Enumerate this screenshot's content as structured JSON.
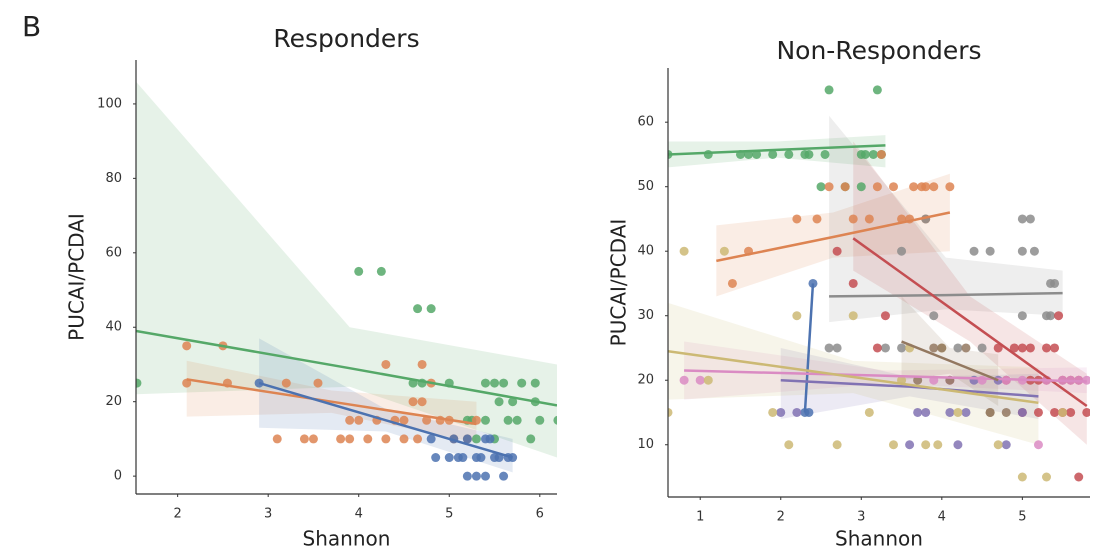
{
  "panel_label": "B",
  "chart_data": [
    {
      "type": "scatter",
      "title": "Responders",
      "x_label": "Shannon",
      "y_label": "PUCAI/PCDAI",
      "xlim": [
        1.54,
        6.19
      ],
      "ylim": [
        -4.8,
        111.8
      ],
      "xticks": [
        2,
        3,
        4,
        5,
        6
      ],
      "yticks": [
        0,
        20,
        40,
        60,
        80,
        100
      ],
      "series": [
        {
          "color": "#55a868",
          "x": [
            1.55,
            4,
            4.25,
            4.65,
            4.8,
            4.6,
            4.7,
            5,
            5.2,
            5.25,
            5.4,
            5.5,
            5.6,
            5.7,
            5.8,
            5.4,
            5.55,
            5.75,
            5.95,
            5.95,
            6.2,
            5.9,
            5.5,
            5.3,
            6,
            5.65
          ],
          "values": [
            25,
            55,
            55,
            45,
            45,
            25,
            25,
            25,
            15,
            15,
            25,
            25,
            25,
            20,
            25,
            15,
            20,
            15,
            25,
            20,
            15,
            10,
            10,
            10,
            15,
            15
          ],
          "fit": {
            "x": [
              1.54,
              3.9,
              6.19
            ],
            "values": [
              39,
              29,
              19
            ],
            "lower": [
              22,
              24,
              5
            ],
            "upper": [
              106,
              40,
              30
            ]
          }
        },
        {
          "color": "#dd8452",
          "x": [
            2.1,
            2.1,
            2.5,
            2.55,
            3.1,
            3.2,
            3.4,
            3.5,
            3.55,
            3.8,
            3.9,
            3.9,
            4,
            4.3,
            4.1,
            4.4,
            4.5,
            4.6,
            4.7,
            4.7,
            4.8,
            4.9,
            5,
            5.05,
            4.5,
            4.65,
            4.75,
            5.2,
            5.3,
            4.3,
            4.2
          ],
          "values": [
            35,
            25,
            35,
            25,
            10,
            25,
            10,
            10,
            25,
            10,
            10,
            15,
            15,
            30,
            10,
            15,
            15,
            20,
            20,
            30,
            25,
            15,
            15,
            10,
            10,
            10,
            15,
            10,
            15,
            10,
            15
          ],
          "fit": {
            "x": [
              2.1,
              3.7,
              5.3
            ],
            "values": [
              26,
              20,
              14
            ],
            "lower": [
              16,
              17,
              9
            ],
            "upper": [
              31,
              23,
              20
            ]
          }
        },
        {
          "color": "#4c72b0",
          "x": [
            2.9,
            4.8,
            4.85,
            5,
            5.05,
            5.1,
            5.15,
            5.2,
            5.3,
            5.35,
            5.4,
            5.5,
            5.55,
            5.6,
            5.65,
            5.7,
            5.2,
            5.4,
            5.45,
            5.3
          ],
          "values": [
            25,
            10,
            5,
            5,
            10,
            5,
            5,
            0,
            0,
            5,
            0,
            5,
            5,
            0,
            5,
            5,
            10,
            10,
            10,
            5
          ],
          "fit": {
            "x": [
              2.9,
              4.3,
              5.7
            ],
            "values": [
              25,
              15,
              5
            ],
            "lower": [
              13,
              12,
              1
            ],
            "upper": [
              37,
              18,
              10
            ]
          }
        }
      ]
    },
    {
      "type": "scatter",
      "title": "Non-Responders",
      "x_label": "Shannon",
      "y_label": "PUCAI/PCDAI",
      "xlim": [
        0.6,
        5.84
      ],
      "ylim": [
        1.9,
        68.4
      ],
      "xticks": [
        1,
        2,
        3,
        4,
        5
      ],
      "yticks": [
        10,
        20,
        30,
        40,
        50,
        60
      ],
      "series": [
        {
          "color": "#55a868",
          "x": [
            0.6,
            1.1,
            1.5,
            1.6,
            1.7,
            1.9,
            2.1,
            2.3,
            2.35,
            2.55,
            2.5,
            2.6,
            3.2,
            3.0,
            3.05,
            3.15,
            3.25,
            2.8,
            3.0
          ],
          "values": [
            55,
            55,
            55,
            55,
            55,
            55,
            55,
            55,
            55,
            55,
            50,
            65,
            65,
            55,
            55,
            55,
            55,
            50,
            50
          ],
          "fit": {
            "x": [
              0.6,
              1.95,
              3.3
            ],
            "values": [
              55,
              55.7,
              56.4
            ],
            "lower": [
              53,
              54.5,
              53
            ],
            "upper": [
              57,
              57,
              58
            ]
          }
        },
        {
          "color": "#dd8452",
          "x": [
            1.4,
            2.2,
            2.45,
            2.6,
            2.8,
            3.2,
            3.25,
            3.4,
            3.5,
            3.65,
            3.75,
            3.8,
            3.9,
            4.1,
            3.6,
            3.8,
            2.9,
            3.1,
            1.6
          ],
          "values": [
            35,
            45,
            45,
            50,
            50,
            50,
            55,
            50,
            45,
            50,
            50,
            50,
            50,
            50,
            45,
            45,
            45,
            45,
            40
          ],
          "fit": {
            "x": [
              1.2,
              2.65,
              4.1
            ],
            "values": [
              38.5,
              42.2,
              46
            ],
            "lower": [
              33,
              39,
              40
            ],
            "upper": [
              44,
              46,
              52
            ]
          }
        },
        {
          "color": "#8c8c8c",
          "x": [
            3.5,
            3.8,
            3.9,
            4.4,
            4.6,
            5,
            5.1,
            5,
            5.15,
            5.35,
            5.4,
            5,
            5.3,
            4.2,
            4.5,
            3.3,
            3.5,
            2.6,
            2.7,
            5.35
          ],
          "values": [
            40,
            45,
            30,
            40,
            40,
            45,
            45,
            40,
            40,
            35,
            35,
            30,
            30,
            25,
            25,
            25,
            25,
            25,
            25,
            30
          ],
          "fit": {
            "x": [
              2.6,
              4.05,
              5.5
            ],
            "values": [
              33,
              33.2,
              33.5
            ],
            "lower": [
              29,
              31,
              30
            ],
            "upper": [
              61,
              39,
              37
            ]
          }
        },
        {
          "color": "#c44e52",
          "x": [
            2.9,
            3.3,
            2.7,
            3.2,
            4.7,
            4.8,
            4.9,
            5.0,
            5.1,
            5.2,
            5.3,
            5.4,
            5.5,
            5.6,
            5.7,
            5.8,
            5.0,
            5.2,
            5.4,
            5.6,
            5.5,
            5.7,
            5.3,
            5.1,
            5.45
          ],
          "values": [
            35,
            30,
            40,
            25,
            25,
            20,
            25,
            15,
            20,
            15,
            25,
            15,
            20,
            15,
            20,
            15,
            25,
            20,
            25,
            20,
            15,
            5,
            20,
            25,
            30
          ],
          "fit": {
            "x": [
              2.9,
              4.35,
              5.8
            ],
            "values": [
              42,
              29,
              16
            ],
            "lower": [
              37,
              26,
              10
            ],
            "upper": [
              57,
              33,
              21
            ]
          }
        },
        {
          "color": "#4c72b0",
          "x": [
            2.3,
            2.4,
            2.35
          ],
          "values": [
            15,
            35,
            15
          ],
          "fit": {
            "x": [
              2.3,
              2.35,
              2.4
            ],
            "values": [
              15,
              25,
              35
            ],
            "lower": [
              14,
              24,
              34
            ],
            "upper": [
              16,
              26,
              36
            ]
          }
        },
        {
          "color": "#8172b3",
          "x": [
            2,
            2.2,
            3.7,
            3.8,
            4.1,
            4.3,
            4.6,
            3.6,
            4.2,
            4.8,
            5,
            4.4,
            4.7
          ],
          "values": [
            15,
            15,
            15,
            15,
            15,
            15,
            15,
            10,
            10,
            10,
            15,
            20,
            20
          ],
          "fit": {
            "x": [
              2,
              3.6,
              5.2
            ],
            "values": [
              20,
              19,
              17.5
            ],
            "lower": [
              14,
              17.5,
              14
            ],
            "upper": [
              25,
              20.5,
              21
            ]
          }
        },
        {
          "color": "#da8bc3",
          "x": [
            0.8,
            1,
            3.9,
            4.1,
            4.5,
            4.8,
            5,
            5.3,
            5.5,
            5.7,
            5.2,
            5.6,
            5.8
          ],
          "values": [
            20,
            20,
            20,
            20,
            20,
            20,
            20,
            20,
            20,
            20,
            10,
            20,
            20
          ],
          "fit": {
            "x": [
              0.8,
              3.3,
              5.8
            ],
            "values": [
              21.5,
              20.7,
              19.8
            ],
            "lower": [
              17,
              19.5,
              18
            ],
            "upper": [
              26,
              21.5,
              22
            ]
          }
        },
        {
          "color": "#ccb974",
          "x": [
            0.6,
            0.8,
            1.1,
            1.3,
            1.9,
            2.1,
            2.2,
            2.7,
            2.9,
            3.1,
            3.4,
            3.8,
            3.95,
            4,
            4.2,
            4.6,
            4.7,
            5,
            5.3,
            5.5,
            3.5,
            3.6
          ],
          "values": [
            15,
            40,
            20,
            40,
            15,
            10,
            30,
            10,
            30,
            15,
            10,
            10,
            10,
            25,
            15,
            15,
            10,
            5,
            5,
            15,
            20,
            25
          ],
          "fit": {
            "x": [
              0.6,
              2.9,
              5.2
            ],
            "values": [
              24.5,
              20.5,
              16.5
            ],
            "lower": [
              17,
              18,
              10
            ],
            "upper": [
              32,
              23,
              22
            ]
          }
        },
        {
          "color": "#937860",
          "x": [
            3.9,
            4,
            4.3,
            4.6,
            4.8,
            3.7,
            4.1
          ],
          "values": [
            25,
            25,
            25,
            15,
            15,
            20,
            20
          ],
          "fit": {
            "x": [
              3.5,
              4.1,
              4.7
            ],
            "values": [
              26,
              23,
              20
            ],
            "lower": [
              20,
              21,
              16
            ],
            "upper": [
              33,
              25,
              24
            ]
          }
        }
      ]
    }
  ]
}
